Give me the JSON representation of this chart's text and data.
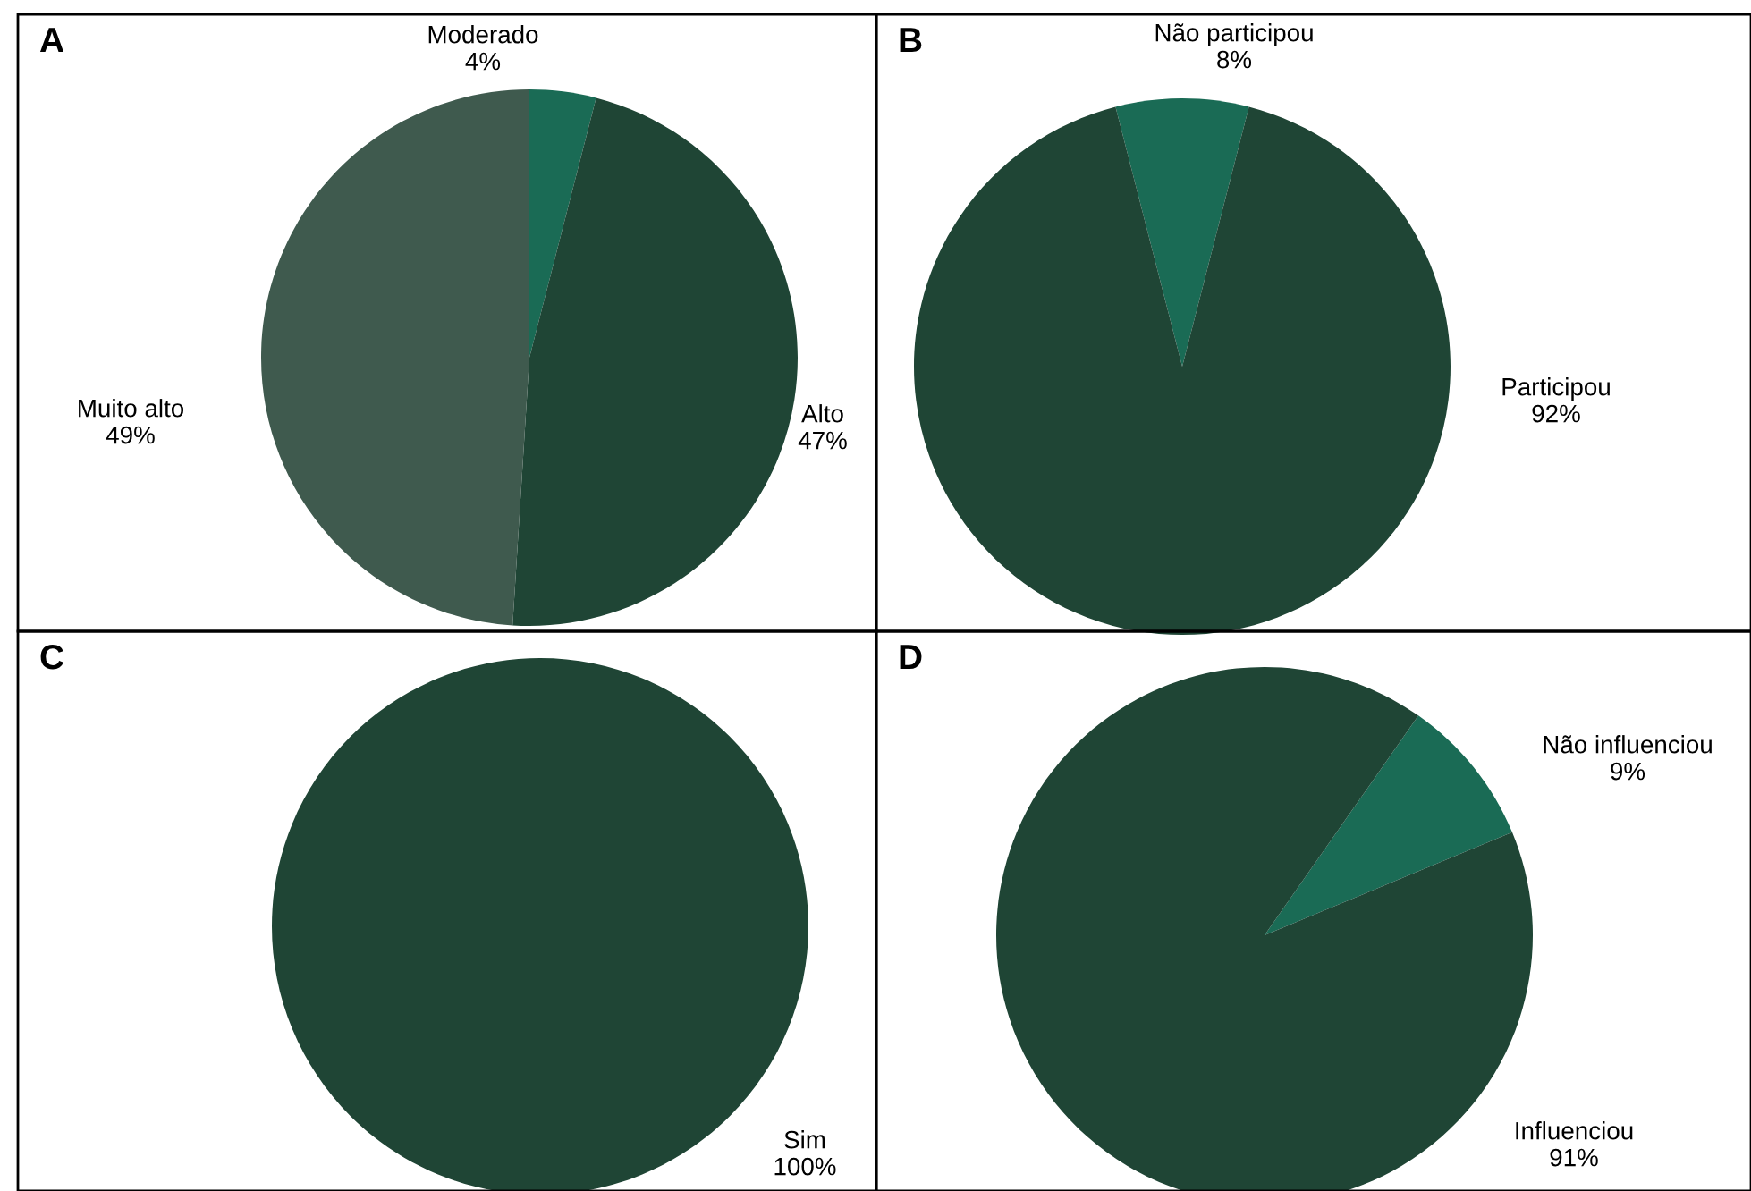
{
  "chart_data": [
    {
      "type": "pie",
      "title": "A",
      "categories": [
        "Moderado",
        "Alto",
        "Muito alto"
      ],
      "values": [
        4,
        47,
        49
      ],
      "colors": [
        "#1a6b55",
        "#1f4535",
        "#3f5a4e"
      ],
      "value_labels": [
        "4%",
        "47%",
        "49%"
      ]
    },
    {
      "type": "pie",
      "title": "B",
      "categories": [
        "Não participou",
        "Participou"
      ],
      "values": [
        8,
        92
      ],
      "colors": [
        "#1a6b55",
        "#1f4535"
      ],
      "value_labels": [
        "8%",
        "92%"
      ]
    },
    {
      "type": "pie",
      "title": "C",
      "categories": [
        "Sim"
      ],
      "values": [
        100
      ],
      "colors": [
        "#1f4535"
      ],
      "value_labels": [
        "100%"
      ]
    },
    {
      "type": "pie",
      "title": "D",
      "categories": [
        "Não influenciou",
        "Influenciou"
      ],
      "values": [
        9,
        91
      ],
      "colors": [
        "#1a6b55",
        "#1f4535"
      ],
      "value_labels": [
        "9%",
        "91%"
      ]
    }
  ]
}
